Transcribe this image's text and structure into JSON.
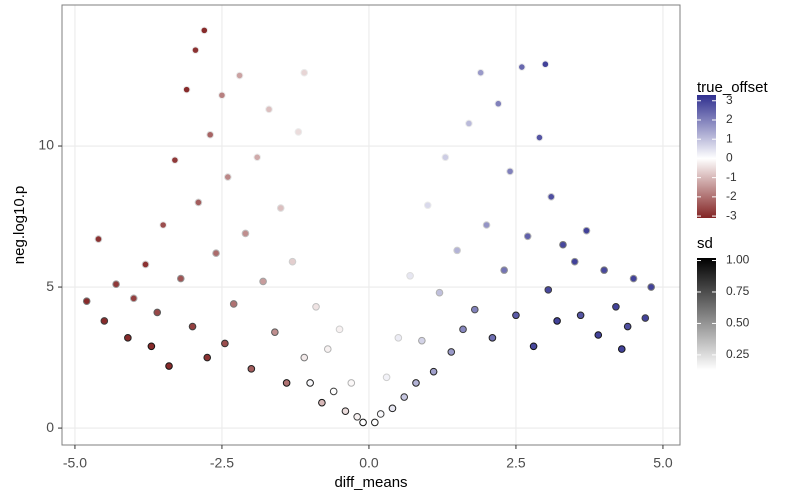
{
  "chart_data": {
    "type": "scatter",
    "xlabel": "diff_means",
    "ylabel": "neg.log10.p",
    "xlim": [
      -5.22,
      5.29
    ],
    "ylim": [
      -0.6,
      15.0
    ],
    "xticks": [
      {
        "value": -5,
        "label": "-5.0"
      },
      -2.5,
      {
        "value": 0,
        "label": "0.0"
      },
      2.5,
      {
        "value": 5,
        "label": "5.0"
      }
    ],
    "yticks": [
      0,
      5,
      10
    ],
    "grid": true,
    "color_title": "true_offset",
    "color_low": "#832424",
    "color_mid": "#ffffff",
    "color_high": "#2f2f8f",
    "color_lim": [
      -3.1,
      3.3
    ],
    "color_ticks": [
      -3,
      -2,
      -1,
      0,
      1,
      2,
      3
    ],
    "sd_title": "sd",
    "sd_lim": [
      0.13,
      1.02
    ],
    "sd_ticks": [
      0.25,
      {
        "value": 0.5,
        "label": "0.50"
      },
      0.75,
      {
        "value": 1,
        "label": "1.00"
      }
    ],
    "x": [
      -4.8,
      -4.6,
      -4.5,
      -4.3,
      -4.1,
      -4.0,
      -3.8,
      -3.7,
      -3.6,
      -3.5,
      -3.4,
      -3.3,
      -3.2,
      -3.1,
      -3.0,
      -2.95,
      -2.9,
      -2.8,
      -2.75,
      -2.7,
      -2.6,
      -2.5,
      -2.45,
      -2.4,
      -2.3,
      -2.2,
      -2.1,
      -2.0,
      -1.9,
      -1.8,
      -1.7,
      -1.6,
      -1.5,
      -1.4,
      -1.3,
      -1.2,
      -1.1,
      -1.0,
      -0.9,
      -0.8,
      -0.7,
      -0.6,
      -0.5,
      -0.4,
      -0.3,
      -0.2,
      -0.1,
      -1.1,
      0.1,
      0.2,
      0.3,
      0.4,
      0.5,
      0.6,
      0.7,
      0.8,
      0.9,
      1.0,
      1.1,
      1.2,
      1.3,
      1.4,
      1.5,
      1.6,
      1.7,
      1.8,
      1.9,
      2.0,
      2.1,
      2.2,
      2.3,
      2.4,
      2.5,
      2.6,
      2.7,
      2.8,
      2.9,
      3.0,
      3.05,
      3.1,
      3.2,
      3.3,
      3.5,
      3.6,
      3.7,
      3.9,
      4.0,
      4.2,
      4.4,
      4.5,
      4.7,
      4.8,
      4.3
    ],
    "y": [
      4.5,
      6.7,
      3.8,
      5.1,
      3.2,
      4.6,
      5.8,
      2.9,
      4.1,
      7.2,
      2.2,
      9.5,
      5.3,
      12.0,
      3.6,
      13.4,
      8.0,
      14.1,
      2.5,
      10.4,
      6.2,
      11.8,
      3.0,
      8.9,
      4.4,
      12.5,
      6.9,
      2.1,
      9.6,
      5.2,
      11.3,
      3.4,
      7.8,
      1.6,
      5.9,
      10.5,
      2.5,
      1.6,
      4.3,
      0.9,
      2.8,
      1.3,
      3.5,
      0.6,
      1.6,
      0.4,
      0.2,
      12.6,
      0.2,
      0.5,
      1.8,
      0.7,
      3.2,
      1.1,
      5.4,
      1.6,
      3.1,
      7.9,
      2.0,
      4.8,
      9.6,
      2.7,
      6.3,
      3.5,
      10.8,
      4.2,
      12.6,
      7.2,
      3.2,
      11.5,
      5.6,
      9.1,
      4.0,
      12.8,
      6.8,
      2.9,
      10.3,
      12.9,
      4.9,
      8.2,
      3.8,
      6.5,
      5.9,
      4.0,
      7.0,
      3.3,
      5.6,
      4.3,
      3.6,
      5.3,
      3.9,
      5.0,
      2.8
    ],
    "true_offset": [
      -3,
      -2.9,
      -3,
      -2.8,
      -3,
      -2.7,
      -2.9,
      -3,
      -2.6,
      -2.5,
      -3,
      -2.8,
      -2.4,
      -3,
      -2.7,
      -2.9,
      -2.3,
      -3,
      -2.9,
      -2.2,
      -2.1,
      -1.8,
      -2.5,
      -1.7,
      -2.0,
      -1.3,
      -1.6,
      -2.3,
      -1.2,
      -1.4,
      -0.9,
      -1.6,
      -0.9,
      -2.0,
      -0.7,
      -0.5,
      -0.3,
      0.1,
      -0.4,
      -1.0,
      -0.2,
      0,
      -0.2,
      -0.5,
      -0.1,
      -0.2,
      0,
      -0.6,
      0,
      0.1,
      0.2,
      0.4,
      0.3,
      0.9,
      0.4,
      1.2,
      0.7,
      0.6,
      1.5,
      1.0,
      0.8,
      1.6,
      1.2,
      1.9,
      1.1,
      2.0,
      1.6,
      1.7,
      2.3,
      2.0,
      2.2,
      2.0,
      2.6,
      2.4,
      2.5,
      2.9,
      2.7,
      3.0,
      2.9,
      2.8,
      3.0,
      2.9,
      3.0,
      2.7,
      3.0,
      3.0,
      2.9,
      3.0,
      2.8,
      3.0,
      3.0,
      3.0,
      3
    ],
    "sd": [
      0.6,
      0.3,
      0.8,
      0.5,
      0.9,
      0.4,
      0.3,
      0.95,
      0.7,
      0.2,
      0.95,
      0.2,
      0.5,
      0.2,
      0.8,
      0.2,
      0.3,
      0.2,
      0.9,
      0.25,
      0.4,
      0.2,
      0.85,
      0.25,
      0.6,
      0.2,
      0.35,
      0.9,
      0.2,
      0.45,
      0.2,
      0.7,
      0.25,
      0.95,
      0.3,
      0.2,
      0.6,
      0.9,
      0.35,
      0.95,
      0.4,
      0.8,
      0.3,
      0.9,
      0.4,
      0.8,
      0.95,
      0.2,
      0.9,
      0.8,
      0.3,
      0.9,
      0.3,
      0.85,
      0.25,
      0.9,
      0.45,
      0.2,
      0.9,
      0.4,
      0.2,
      0.85,
      0.3,
      0.8,
      0.2,
      0.75,
      0.2,
      0.3,
      0.9,
      0.2,
      0.5,
      0.25,
      0.9,
      0.2,
      0.4,
      0.95,
      0.2,
      0.2,
      0.8,
      0.3,
      0.95,
      0.6,
      0.5,
      0.9,
      0.4,
      0.95,
      0.6,
      0.85,
      0.9,
      0.5,
      0.8,
      0.6,
      0.95
    ]
  }
}
